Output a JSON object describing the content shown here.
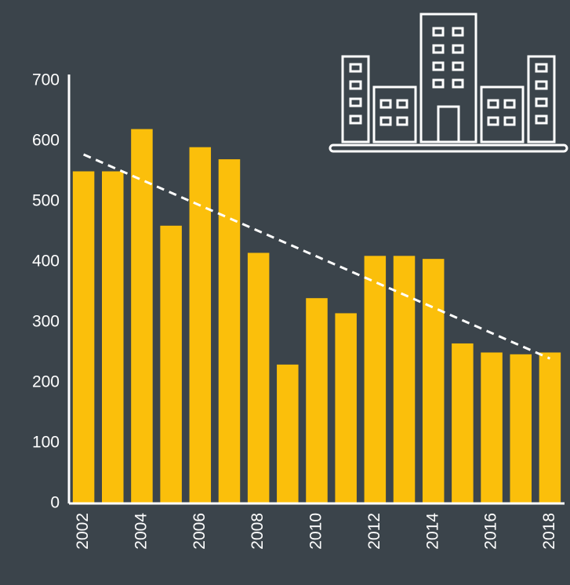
{
  "chart_data": {
    "type": "bar",
    "categories": [
      "2002",
      null,
      "2004",
      null,
      "2006",
      null,
      "2008",
      null,
      "2010",
      null,
      "2012",
      null,
      "2014",
      null,
      "2016",
      null,
      "2018"
    ],
    "values": [
      550,
      550,
      620,
      460,
      590,
      570,
      415,
      230,
      340,
      315,
      410,
      410,
      405,
      265,
      250,
      247,
      250
    ],
    "color": "#fbbf0b",
    "ylim": [
      0,
      700
    ],
    "yticks": [
      0,
      100,
      200,
      300,
      400,
      500,
      600,
      700
    ],
    "grid": false,
    "trendline": {
      "start": 578,
      "end": 240,
      "color": "#ffffff"
    }
  }
}
